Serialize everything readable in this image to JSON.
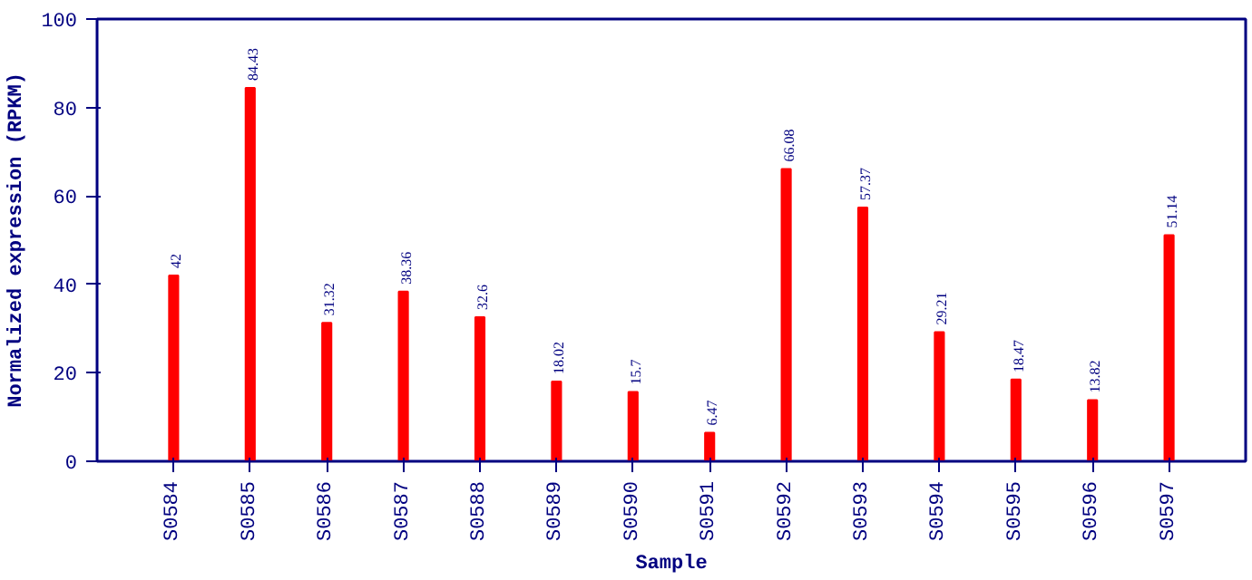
{
  "chart_data": {
    "type": "bar",
    "xlabel": "Sample",
    "ylabel": "Normalized expression (RPKM)",
    "categories": [
      "S0584",
      "S0585",
      "S0586",
      "S0587",
      "S0588",
      "S0589",
      "S0590",
      "S0591",
      "S0592",
      "S0593",
      "S0594",
      "S0595",
      "S0596",
      "S0597"
    ],
    "values": [
      42,
      84.43,
      31.32,
      38.36,
      32.6,
      18.02,
      15.7,
      6.47,
      66.08,
      57.37,
      29.21,
      18.47,
      13.82,
      51.14
    ],
    "color": "#ff0000",
    "ylim": [
      0,
      100
    ],
    "yticks": [
      0,
      20,
      40,
      60,
      80,
      100
    ],
    "grid": false,
    "data_labels": true
  }
}
